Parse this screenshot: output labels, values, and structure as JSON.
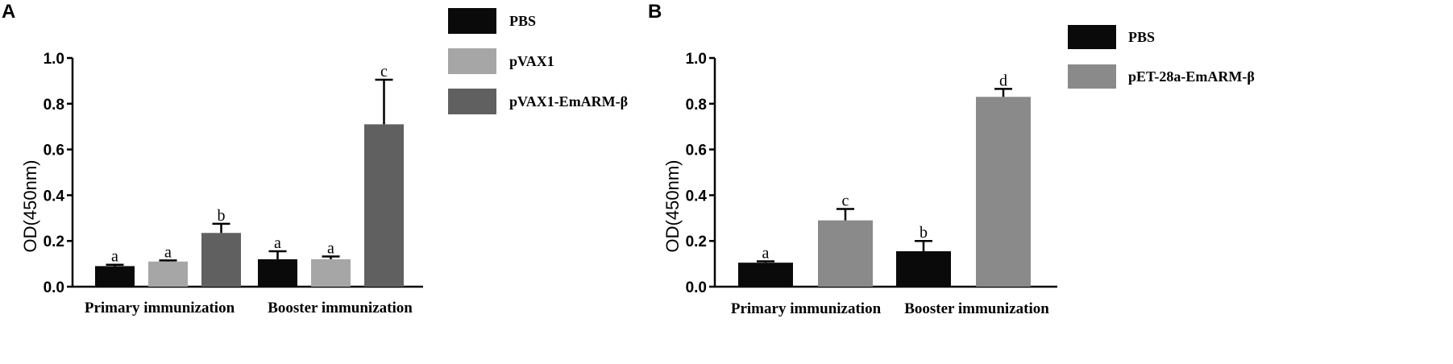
{
  "chart_data": [
    {
      "panel": "A",
      "type": "bar",
      "xlabel": "",
      "ylabel": "OD(450nm)",
      "ylim": [
        0,
        1.0
      ],
      "yticks": [
        "0.0",
        "0.2",
        "0.4",
        "0.6",
        "0.8",
        "1.0"
      ],
      "categories": [
        "Primary immunization",
        "Booster immunization"
      ],
      "legend_position": "top-right",
      "series": [
        {
          "name": "PBS",
          "color": "#0a0a0a",
          "values": [
            0.09,
            0.12
          ],
          "errors": [
            0.006,
            0.035
          ],
          "labels": [
            "a",
            "a"
          ]
        },
        {
          "name": "pVAX1",
          "color": "#a6a6a6",
          "values": [
            0.11,
            0.12
          ],
          "errors": [
            0.005,
            0.012
          ],
          "labels": [
            "a",
            "a"
          ]
        },
        {
          "name": "pVAX1-EmARM-β",
          "color": "#606060",
          "values": [
            0.235,
            0.71
          ],
          "errors": [
            0.04,
            0.195
          ],
          "labels": [
            "b",
            "c"
          ]
        }
      ]
    },
    {
      "panel": "B",
      "type": "bar",
      "xlabel": "",
      "ylabel": "OD(450nm)",
      "ylim": [
        0,
        1.0
      ],
      "yticks": [
        "0.0",
        "0.2",
        "0.4",
        "0.6",
        "0.8",
        "1.0"
      ],
      "categories": [
        "Primary immunization",
        "Booster immunization"
      ],
      "legend_position": "top-right",
      "series": [
        {
          "name": "PBS",
          "color": "#0a0a0a",
          "values": [
            0.105,
            0.155
          ],
          "errors": [
            0.006,
            0.045
          ],
          "labels": [
            "a",
            "b"
          ]
        },
        {
          "name": "pET-28a-EmARM-β",
          "color": "#8a8a8a",
          "values": [
            0.29,
            0.83
          ],
          "errors": [
            0.05,
            0.035
          ],
          "labels": [
            "c",
            "d"
          ]
        }
      ]
    }
  ]
}
